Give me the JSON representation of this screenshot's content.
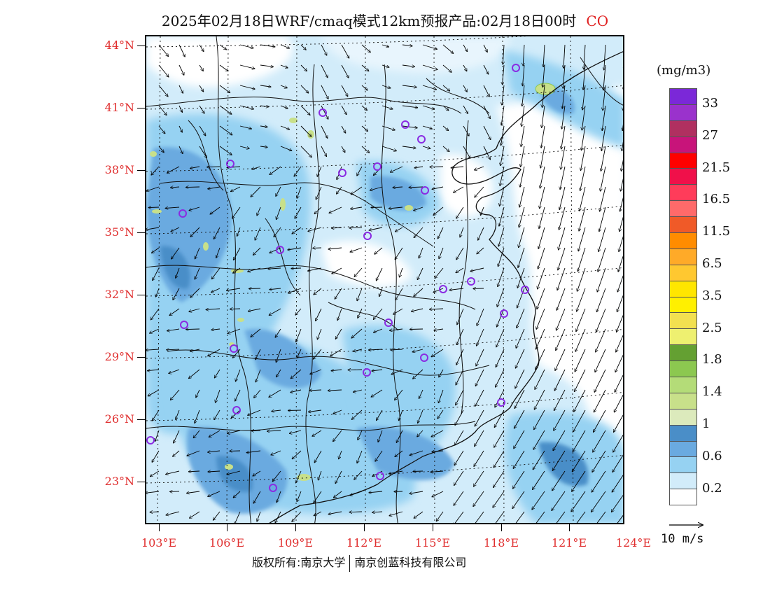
{
  "title": {
    "main": "2025年02月18日WRF/cmaq模式12km预报产品:02月18日00时",
    "species": "CO"
  },
  "axes": {
    "lat_labels": [
      "44°N",
      "41°N",
      "38°N",
      "35°N",
      "32°N",
      "29°N",
      "26°N",
      "23°N"
    ],
    "lon_labels": [
      "103°E",
      "106°E",
      "109°E",
      "112°E",
      "115°E",
      "118°E",
      "121°E",
      "124°E"
    ]
  },
  "legend": {
    "unit": "(mg/m3)",
    "labels": [
      "33",
      "27",
      "21.5",
      "16.5",
      "11.5",
      "6.5",
      "3.5",
      "2.5",
      "1.8",
      "1.4",
      "1",
      "0.6",
      "0.2"
    ],
    "colors": [
      "#7b28d8",
      "#9a32cc",
      "#b03060",
      "#c8147a",
      "#ff0000",
      "#f0104a",
      "#ff3c5a",
      "#ff6a6a",
      "#f05a28",
      "#ff8c00",
      "#ffaa28",
      "#ffc830",
      "#ffe600",
      "#fff000",
      "#f2e050",
      "#eef070",
      "#64a032",
      "#8cc850",
      "#b4dc78",
      "#c8e08a",
      "#dceabc",
      "#4a8ec8",
      "#6aaae0",
      "#96d2f2",
      "#d2ecfa",
      "#ffffff"
    ]
  },
  "wind_reference": {
    "label": "10 m/s"
  },
  "footer": {
    "left": "版权所有:南京大学",
    "right": "南京创蓝科技有限公司"
  }
}
